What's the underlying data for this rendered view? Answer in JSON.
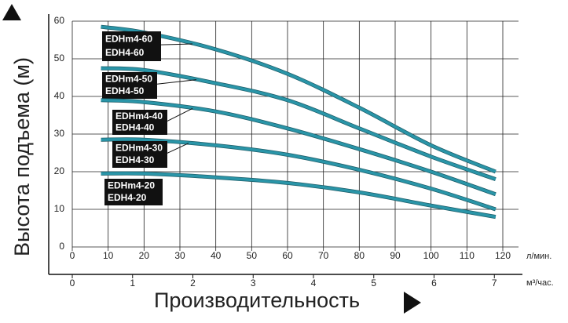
{
  "chart_data": {
    "type": "line",
    "ylabel": "Высота подъема (м)",
    "xlabel": "Производительность",
    "x_unit": "л/мин.",
    "x2_unit": "м³/час.",
    "xlim": [
      0,
      120
    ],
    "xticks": [
      0,
      10,
      20,
      30,
      40,
      50,
      60,
      70,
      80,
      90,
      100,
      110,
      120
    ],
    "x2lim": [
      0,
      7.14
    ],
    "x2ticks": [
      0,
      1,
      2,
      3,
      4,
      5,
      6,
      7
    ],
    "ylim": [
      0,
      60
    ],
    "yticks": [
      0,
      10,
      20,
      30,
      40,
      50,
      60
    ],
    "grid": true,
    "x": [
      8,
      20,
      40,
      60,
      80,
      100,
      118
    ],
    "series": [
      {
        "name": "EDHm4-60",
        "name2": "EDH4-60",
        "color": "#2a95a8",
        "values": [
          58.5,
          57,
          52.5,
          46,
          37,
          27,
          20
        ]
      },
      {
        "name": "EDHm4-50",
        "name2": "EDH4-50",
        "color": "#2a95a8",
        "values": [
          47.5,
          47,
          43.5,
          39,
          31.5,
          24,
          18
        ]
      },
      {
        "name": "EDHm4-40",
        "name2": "EDH4-40",
        "color": "#2a95a8",
        "values": [
          39,
          38.5,
          36,
          31.5,
          26,
          20,
          14
        ]
      },
      {
        "name": "EDHm4-30",
        "name2": "EDH4-30",
        "color": "#2a95a8",
        "values": [
          28.5,
          28.5,
          27,
          24.5,
          20.5,
          15.5,
          10
        ]
      },
      {
        "name": "EDHm4-20",
        "name2": "EDH4-20",
        "color": "#2a95a8",
        "values": [
          19.5,
          19.5,
          18.5,
          17,
          14.5,
          11,
          8
        ]
      }
    ]
  }
}
